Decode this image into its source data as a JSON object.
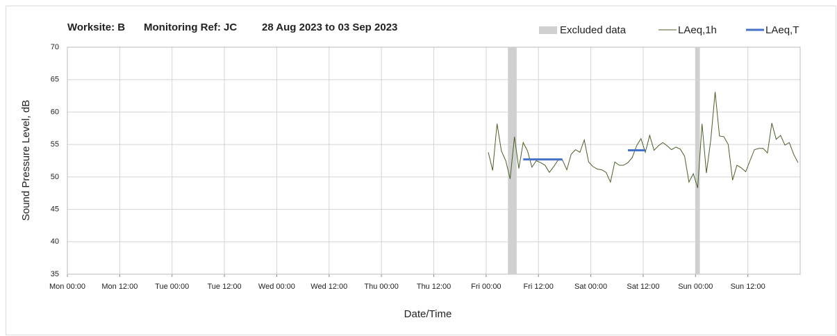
{
  "chart_data": {
    "type": "line",
    "title": [
      "Worksite: B",
      "Monitoring Ref: JC",
      "28 Aug 2023 to 03 Sep 2023"
    ],
    "x_label": "Date/Time",
    "y_label": "Sound Pressure Level, dB",
    "xlim": [
      0,
      168
    ],
    "xticks": [
      {
        "value": 0,
        "label": "Mon 00:00"
      },
      {
        "value": 12,
        "label": "Mon 12:00"
      },
      {
        "value": 24,
        "label": "Tue 00:00"
      },
      {
        "value": 36,
        "label": "Tue 12:00"
      },
      {
        "value": 48,
        "label": "Wed 00:00"
      },
      {
        "value": 60,
        "label": "Wed 12:00"
      },
      {
        "value": 72,
        "label": "Thu 00:00"
      },
      {
        "value": 84,
        "label": "Thu 12:00"
      },
      {
        "value": 96,
        "label": "Fri 00:00"
      },
      {
        "value": 108,
        "label": "Fri 12:00"
      },
      {
        "value": 120,
        "label": "Sat 00:00"
      },
      {
        "value": 132,
        "label": "Sat 12:00"
      },
      {
        "value": 144,
        "label": "Sun 00:00"
      },
      {
        "value": 156,
        "label": "Sun 12:00"
      }
    ],
    "ylim": [
      35,
      70
    ],
    "yticks": [
      35,
      40,
      45,
      50,
      55,
      60,
      65,
      70
    ],
    "grid": true,
    "excluded": {
      "name": "Excluded data",
      "color": "#d0d0d0",
      "ranges": [
        [
          101,
          103
        ],
        [
          144,
          145
        ]
      ]
    },
    "series": [
      {
        "name": "LAeq,1h",
        "color": "#4a5e2a",
        "x": [
          96.5,
          97.5,
          98.5,
          99.5,
          100.5,
          101.5,
          102.5,
          103.5,
          104.5,
          105.5,
          106.5,
          107.5,
          108.5,
          109.5,
          110.5,
          111.5,
          112.5,
          113.5,
          114.5,
          115.5,
          116.5,
          117.5,
          118.5,
          119.5,
          120.5,
          121.5,
          122.5,
          123.5,
          124.5,
          125.5,
          126.5,
          127.5,
          128.5,
          129.5,
          130.5,
          131.5,
          132.5,
          133.5,
          134.5,
          135.5,
          136.5,
          137.5,
          138.5,
          139.5,
          140.5,
          141.5,
          142.5,
          143.5,
          144.5,
          145.5,
          146.5,
          147.5,
          148.5,
          149.5,
          150.5,
          151.5,
          152.5,
          153.5,
          154.5,
          155.5,
          156.5,
          157.5,
          158.5,
          159.5,
          160.5,
          161.5,
          162.5,
          163.5,
          164.5,
          165.5,
          166.5,
          167.5
        ],
        "values": [
          53.8,
          51,
          58.2,
          54,
          52.5,
          49.7,
          56.2,
          51.3,
          55.3,
          54,
          51.5,
          52.5,
          52.2,
          51.8,
          50.7,
          51.6,
          52.6,
          52.6,
          51.1,
          53.5,
          54.2,
          53.8,
          55.7,
          52.3,
          51.6,
          51.2,
          51.1,
          50.7,
          49.2,
          52.3,
          51.8,
          51.8,
          52.2,
          53,
          54.8,
          55.9,
          53.8,
          56.4,
          54.1,
          54.8,
          55.3,
          54.8,
          54.2,
          54.6,
          54.3,
          53.2,
          49.2,
          50.5,
          48.3,
          58.2,
          50.6,
          55.7,
          63.1,
          56.3,
          56.2,
          55,
          49.5,
          51.8,
          51.4,
          50.8,
          52.5,
          54.2,
          54.4,
          54.4,
          53.7,
          58.3,
          55.8,
          56.4,
          54.9,
          55.3,
          53.5,
          52.2
        ]
      },
      {
        "name": "LAeq,T",
        "color": "#4472c4",
        "segments": [
          {
            "start": 104.5,
            "end": 113.5,
            "value": 52.7
          },
          {
            "start": 128.5,
            "end": 132.5,
            "value": 54.1
          }
        ]
      }
    ]
  }
}
